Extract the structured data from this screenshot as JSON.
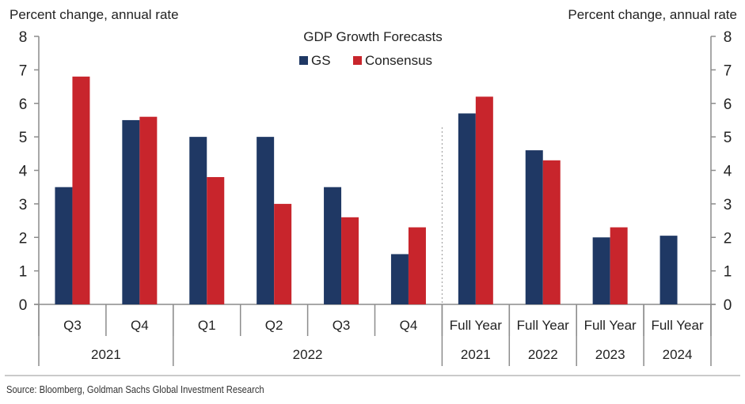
{
  "chart_data": {
    "type": "bar",
    "title": "GDP Growth Forecasts",
    "ylabel_left": "Percent change, annual rate",
    "ylabel_right": "Percent change, annual rate",
    "ylim": [
      0,
      8
    ],
    "yticks": [
      0,
      1,
      2,
      3,
      4,
      5,
      6,
      7,
      8
    ],
    "legend": {
      "position": "top-center",
      "entries": [
        "GS",
        "Consensus"
      ]
    },
    "categories": [
      {
        "label": "Q3",
        "group": "2021"
      },
      {
        "label": "Q4",
        "group": "2021"
      },
      {
        "label": "Q1",
        "group": "2022"
      },
      {
        "label": "Q2",
        "group": "2022"
      },
      {
        "label": "Q3",
        "group": "2022"
      },
      {
        "label": "Q4",
        "group": "2022"
      },
      {
        "label": "Full Year",
        "group": "2021"
      },
      {
        "label": "Full Year",
        "group": "2022"
      },
      {
        "label": "Full Year",
        "group": "2023"
      },
      {
        "label": "Full Year",
        "group": "2024"
      }
    ],
    "groups": [
      {
        "label": "2021",
        "span": 2
      },
      {
        "label": "2022",
        "span": 4
      },
      {
        "label": "2021",
        "span": 1
      },
      {
        "label": "2022",
        "span": 1
      },
      {
        "label": "2023",
        "span": 1
      },
      {
        "label": "2024",
        "span": 1
      }
    ],
    "series": [
      {
        "name": "GS",
        "color": "#1f3864",
        "values": [
          3.5,
          5.5,
          5.0,
          5.0,
          3.5,
          1.5,
          5.7,
          4.6,
          2.0,
          2.05
        ]
      },
      {
        "name": "Consensus",
        "color": "#c8252c",
        "values": [
          6.8,
          5.6,
          3.8,
          3.0,
          2.6,
          2.3,
          6.2,
          4.3,
          2.3,
          null
        ]
      }
    ],
    "divider_after_category": 5,
    "grid": false
  },
  "footer": {
    "source": "Source: Bloomberg, Goldman Sachs Global Investment Research"
  }
}
